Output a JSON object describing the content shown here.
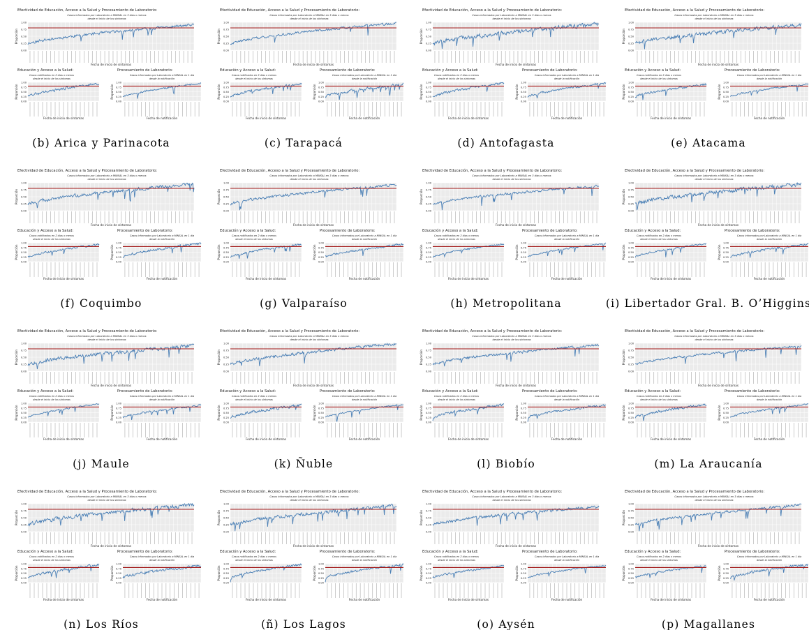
{
  "figure": {
    "panels": [
      {
        "id": "b",
        "caption": "(b) Arica y Parinacota"
      },
      {
        "id": "c",
        "caption": "(c) Tarapacá"
      },
      {
        "id": "d",
        "caption": "(d) Antofagasta"
      },
      {
        "id": "e",
        "caption": "(e) Atacama"
      },
      {
        "id": "f",
        "caption": "(f) Coquimbo"
      },
      {
        "id": "g",
        "caption": "(g) Valparaíso"
      },
      {
        "id": "h",
        "caption": "(h) Metropolitana"
      },
      {
        "id": "i",
        "caption": "(i) Libertador Gral. B. O’Higgins"
      },
      {
        "id": "j",
        "caption": "(j) Maule"
      },
      {
        "id": "k",
        "caption": "(k) Ñuble"
      },
      {
        "id": "l",
        "caption": "(l) Biobío"
      },
      {
        "id": "m",
        "caption": "(m) La Araucanía"
      },
      {
        "id": "n",
        "caption": "(n) Los Ríos"
      },
      {
        "id": "o",
        "caption": "(ñ) Los Lagos"
      },
      {
        "id": "p",
        "caption": "(o) Aysén"
      },
      {
        "id": "q",
        "caption": "(p) Magallanes"
      }
    ]
  },
  "chart_data": [
    {
      "type": "line",
      "role": "top",
      "title": "Efectividad de Educación, Acceso a la Salud y Procesamiento de Laboratorio:",
      "subtitle_lines": [
        "Casos informados por Laboratorio a MINSAL en 3 días o menos",
        "desde el inicio de los síntomas"
      ],
      "xlabel": "Fecha de inicio de síntomas",
      "ylabel": "Proporción",
      "ylim": [
        0,
        1
      ],
      "yticks": [
        "0.00",
        "0.25",
        "0.50",
        "0.75",
        "1.00"
      ],
      "reference_line": 0.8,
      "grid": true
    },
    {
      "type": "line",
      "role": "bottom-left",
      "title": "Educación y Acceso a la Salud:",
      "subtitle_lines": [
        "Casos notificados en 2 días o menos",
        "desde el inicio de los síntomas"
      ],
      "xlabel": "Fecha de inicio de síntomas",
      "ylabel": "Proporción",
      "ylim": [
        0,
        1
      ],
      "yticks": [
        "0.00",
        "0.25",
        "0.50",
        "0.75",
        "1.00"
      ],
      "reference_line": 0.8,
      "grid": true
    },
    {
      "type": "line",
      "role": "bottom-right",
      "title": "Procesamiento de Laboratorio:",
      "subtitle_lines": [
        "Casos informados por Laboratorio a MINSAL en 1 día",
        "desde la notificación"
      ],
      "xlabel": "Fecha de notificación",
      "ylabel": "Proporción",
      "ylim": [
        0,
        1
      ],
      "yticks": [
        "0.00",
        "0.25",
        "0.50",
        "0.75",
        "1.00"
      ],
      "reference_line": 0.8,
      "grid": true
    }
  ],
  "colors": {
    "series": "#4a7fb5",
    "reference": "#a31a1a",
    "grid": "#e2e2e2",
    "panel_bg": "#ffffff"
  }
}
